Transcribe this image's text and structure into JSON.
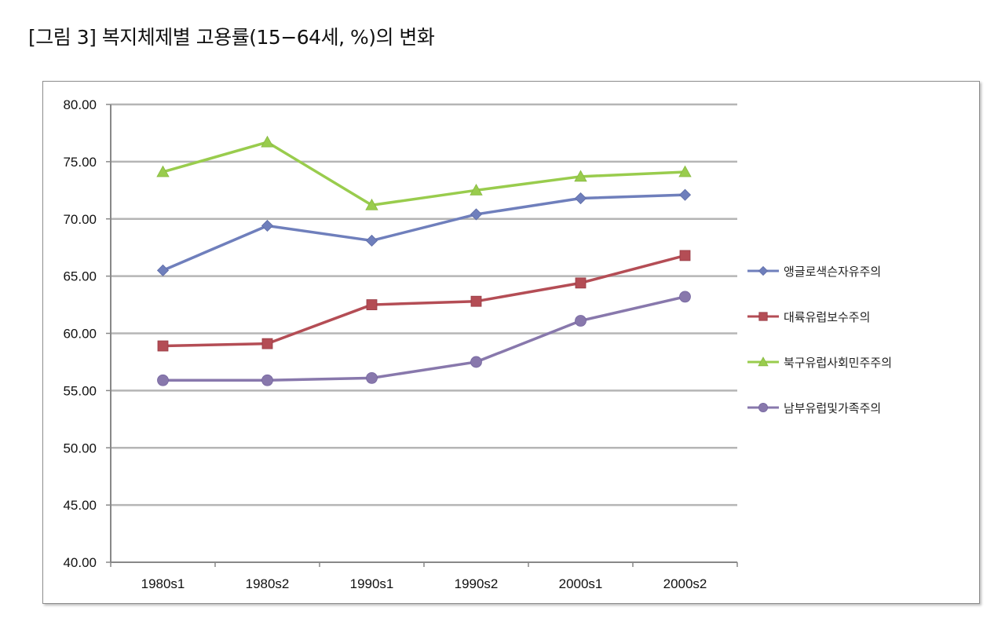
{
  "page": {
    "title": "[그림 3] 복지체제별 고용률(15−64세, %)의 변화"
  },
  "chart_data": {
    "type": "line",
    "title": "[그림 3] 복지체제별 고용률(15−64세, %)의 변화",
    "xlabel": "",
    "ylabel": "",
    "categories": [
      "1980s1",
      "1980s2",
      "1990s1",
      "1990s2",
      "2000s1",
      "2000s2"
    ],
    "ylim": [
      40,
      80
    ],
    "ytick_step": 5,
    "ytick_labels": [
      "80.00",
      "75.00",
      "70.00",
      "65.00",
      "60.00",
      "55.00",
      "50.00",
      "45.00",
      "40.00"
    ],
    "grid": "horizontal",
    "legend_position": "right",
    "series": [
      {
        "name": "앵글로색슨자유주의",
        "values": [
          65.5,
          69.4,
          68.1,
          70.4,
          71.8,
          72.1
        ],
        "color": "#6f7fbc",
        "marker": "diamond"
      },
      {
        "name": "대륙유럽보수주의",
        "values": [
          58.9,
          59.1,
          62.5,
          62.8,
          64.4,
          66.8
        ],
        "color": "#b44d55",
        "marker": "square"
      },
      {
        "name": "북구유럽사회민주주의",
        "values": [
          74.1,
          76.7,
          71.2,
          72.5,
          73.7,
          74.1
        ],
        "color": "#99cc4d",
        "marker": "triangle"
      },
      {
        "name": "남부유럽및가족주의",
        "values": [
          55.9,
          55.9,
          56.1,
          57.5,
          61.1,
          63.2
        ],
        "color": "#8878ac",
        "marker": "circle"
      }
    ]
  }
}
